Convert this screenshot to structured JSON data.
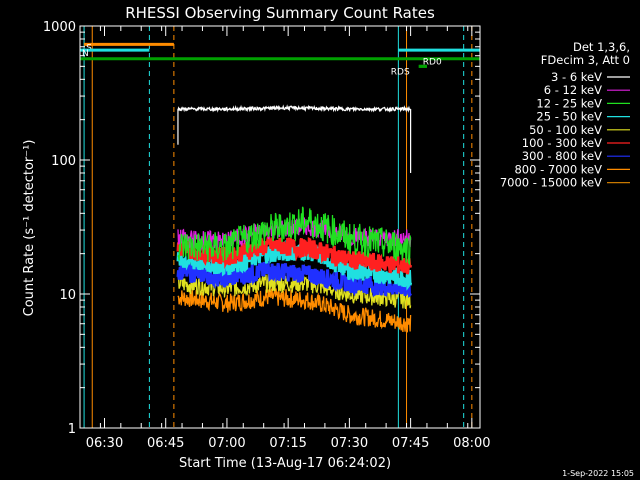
{
  "chart_data": {
    "type": "line",
    "title": "RHESSI Observing Summary Count Rates",
    "xlabel": "Start Time (13-Aug-17 06:24:02)",
    "ylabel": "Count Rate (s⁻¹ detector⁻¹)",
    "y_scale": "log",
    "ylim": [
      1,
      1000
    ],
    "xlim_minutes_after_0624": [
      0,
      98
    ],
    "y_ticks": [
      "1",
      "10",
      "100",
      "1000"
    ],
    "x_ticks": [
      "06:30",
      "06:45",
      "07:00",
      "07:15",
      "07:30",
      "07:45",
      "08:00"
    ],
    "legend_header": [
      "Det 1,3,6,",
      "FDecim 3, Att 0"
    ],
    "series": [
      {
        "name": "3 - 6 keV",
        "color": "#ffffff",
        "t": [
          "06:48",
          "06:50",
          "07:00",
          "07:15",
          "07:30",
          "07:45"
        ],
        "values": [
          240,
          240,
          240,
          245,
          240,
          240
        ]
      },
      {
        "name": "6 - 12 keV",
        "color": "#e020e0",
        "t": [
          "06:48",
          "07:00",
          "07:10",
          "07:20",
          "07:30",
          "07:45"
        ],
        "values": [
          26,
          25,
          30,
          32,
          27,
          26
        ]
      },
      {
        "name": "12 - 25 keV",
        "color": "#20e020",
        "t": [
          "06:48",
          "07:00",
          "07:10",
          "07:20",
          "07:30",
          "07:45"
        ],
        "values": [
          23,
          22,
          30,
          35,
          26,
          22
        ]
      },
      {
        "name": "25 - 50 keV",
        "color": "#20e0e0",
        "t": [
          "06:48",
          "07:00",
          "07:10",
          "07:20",
          "07:30",
          "07:45"
        ],
        "values": [
          18,
          16,
          20,
          21,
          15,
          13
        ]
      },
      {
        "name": "50 - 100 keV",
        "color": "#e0e020",
        "t": [
          "06:48",
          "07:00",
          "07:10",
          "07:20",
          "07:30",
          "07:45"
        ],
        "values": [
          12,
          11,
          12,
          12,
          10,
          9
        ]
      },
      {
        "name": "100 - 300 keV",
        "color": "#ff2020",
        "t": [
          "06:48",
          "07:00",
          "07:10",
          "07:20",
          "07:30",
          "07:45"
        ],
        "values": [
          22,
          19,
          23,
          22,
          18,
          16
        ]
      },
      {
        "name": "300 - 800 keV",
        "color": "#2030ff",
        "t": [
          "06:48",
          "07:00",
          "07:10",
          "07:20",
          "07:30",
          "07:45"
        ],
        "values": [
          15,
          13,
          15,
          14,
          12,
          11
        ]
      },
      {
        "name": "800 - 7000 keV",
        "color": "#ff8c00",
        "t": [
          "06:48",
          "07:00",
          "07:10",
          "07:20",
          "07:30",
          "07:45"
        ],
        "values": [
          9.5,
          8.5,
          9.5,
          9,
          7,
          6
        ]
      },
      {
        "name": "7000 - 15000 keV",
        "color": "#c87800",
        "t": [],
        "values": []
      }
    ],
    "flags": [
      {
        "label": "S",
        "color": "#ff8c00",
        "start": "06:25",
        "end": "06:47",
        "level": 730
      },
      {
        "label": "N",
        "color": "#20e0e0",
        "start": "06:24",
        "end": "06:41",
        "level": 660
      },
      {
        "label": "",
        "color": "#00a000",
        "start": "06:24",
        "end": "08:02",
        "level": 570
      },
      {
        "label": "RD0",
        "color": "#00a000",
        "start": "07:47",
        "end": "07:49",
        "level": 500
      },
      {
        "label": "RDS",
        "color": "#00a000",
        "start": "07:47",
        "end": "07:49",
        "level": 500
      },
      {
        "label": "",
        "color": "#20e0e0",
        "start": "07:42",
        "end": "08:02",
        "level": 660
      }
    ],
    "vertical_markers": [
      {
        "t": "06:25",
        "color": "#20e0e0",
        "style": "solid"
      },
      {
        "t": "06:27",
        "color": "#ff8c00",
        "style": "solid"
      },
      {
        "t": "06:41",
        "color": "#20e0e0",
        "style": "dashed"
      },
      {
        "t": "06:47",
        "color": "#ff8c00",
        "style": "dashed"
      },
      {
        "t": "07:42",
        "color": "#20e0e0",
        "style": "solid"
      },
      {
        "t": "07:44",
        "color": "#ff8c00",
        "style": "solid"
      },
      {
        "t": "07:58",
        "color": "#20e0e0",
        "style": "dashed"
      },
      {
        "t": "08:00",
        "color": "#ff8c00",
        "style": "dashed"
      }
    ],
    "grid": false
  },
  "footer": "1-Sep-2022 15:05"
}
